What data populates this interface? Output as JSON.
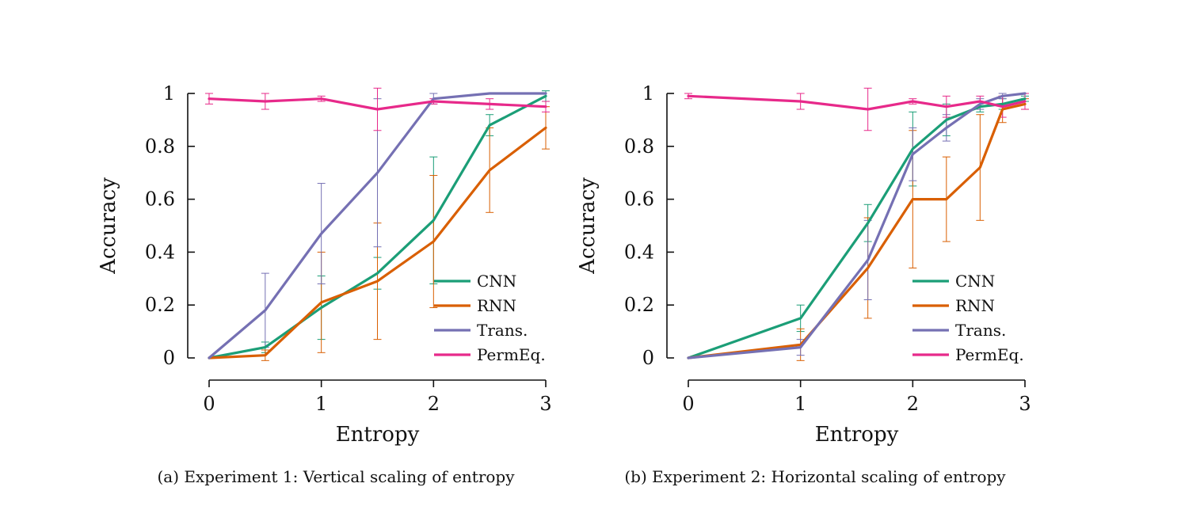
{
  "colors": {
    "CNN": "#1b9e77",
    "RNN": "#d95f02",
    "Trans.": "#7570b3",
    "PermEq.": "#e7298a"
  },
  "chart_data": [
    {
      "type": "line",
      "caption": "(a) Experiment 1: Vertical scaling of entropy",
      "xlabel": "Entropy",
      "ylabel": "Accuracy",
      "xlim": [
        0,
        3
      ],
      "ylim": [
        0,
        1
      ],
      "xticks": [
        "0",
        "1",
        "2",
        "3"
      ],
      "yticks": [
        "0",
        "0.2",
        "0.4",
        "0.6",
        "0.8",
        "1"
      ],
      "legend_position": "bottom-right",
      "grid": false,
      "series": [
        {
          "name": "CNN",
          "x": [
            0,
            0.5,
            1,
            1.5,
            2,
            2.5,
            3
          ],
          "y": [
            0.0,
            0.04,
            0.19,
            0.32,
            0.52,
            0.88,
            0.99
          ],
          "err": [
            0.0,
            0.02,
            0.12,
            0.06,
            0.24,
            0.04,
            0.02
          ]
        },
        {
          "name": "RNN",
          "x": [
            0,
            0.5,
            1,
            1.5,
            2,
            2.5,
            3
          ],
          "y": [
            0.0,
            0.01,
            0.21,
            0.29,
            0.44,
            0.71,
            0.87
          ],
          "err": [
            0.0,
            0.02,
            0.19,
            0.22,
            0.25,
            0.16,
            0.08
          ]
        },
        {
          "name": "Trans.",
          "x": [
            0,
            0.5,
            1,
            1.5,
            2,
            2.5,
            3
          ],
          "y": [
            0.0,
            0.18,
            0.47,
            0.7,
            0.98,
            1.0,
            1.0
          ],
          "err": [
            0.0,
            0.14,
            0.19,
            0.28,
            0.02,
            0.0,
            0.0
          ]
        },
        {
          "name": "PermEq.",
          "x": [
            0,
            0.5,
            1,
            1.5,
            2,
            2.5,
            3
          ],
          "y": [
            0.98,
            0.97,
            0.98,
            0.94,
            0.97,
            0.96,
            0.95
          ],
          "err": [
            0.02,
            0.03,
            0.01,
            0.08,
            0.01,
            0.02,
            0.02
          ]
        }
      ]
    },
    {
      "type": "line",
      "caption": "(b) Experiment 2: Horizontal scaling of entropy",
      "xlabel": "Entropy",
      "ylabel": "Accuracy",
      "xlim": [
        0,
        3
      ],
      "ylim": [
        0,
        1
      ],
      "xticks": [
        "0",
        "1",
        "2",
        "3"
      ],
      "yticks": [
        "0",
        "0.2",
        "0.4",
        "0.6",
        "0.8",
        "1"
      ],
      "legend_position": "bottom-right",
      "grid": false,
      "series": [
        {
          "name": "CNN",
          "x": [
            0,
            1,
            1.6,
            2,
            2.3,
            2.6,
            2.8,
            3
          ],
          "y": [
            0.0,
            0.15,
            0.51,
            0.79,
            0.9,
            0.95,
            0.96,
            0.98
          ],
          "err": [
            0.0,
            0.05,
            0.07,
            0.14,
            0.06,
            0.02,
            0.02,
            0.01
          ]
        },
        {
          "name": "RNN",
          "x": [
            0,
            1,
            1.6,
            2,
            2.3,
            2.6,
            2.8,
            3
          ],
          "y": [
            0.0,
            0.05,
            0.34,
            0.6,
            0.6,
            0.72,
            0.94,
            0.96
          ],
          "err": [
            0.0,
            0.06,
            0.19,
            0.26,
            0.16,
            0.2,
            0.05,
            0.02
          ]
        },
        {
          "name": "Trans.",
          "x": [
            0,
            1,
            1.6,
            2,
            2.3,
            2.6,
            2.8,
            3
          ],
          "y": [
            0.0,
            0.04,
            0.37,
            0.77,
            0.87,
            0.96,
            0.99,
            1.0
          ],
          "err": [
            0.0,
            0.03,
            0.15,
            0.1,
            0.05,
            0.02,
            0.01,
            0.0
          ]
        },
        {
          "name": "PermEq.",
          "x": [
            0,
            1,
            1.6,
            2,
            2.3,
            2.6,
            2.8,
            3
          ],
          "y": [
            0.99,
            0.97,
            0.94,
            0.97,
            0.95,
            0.97,
            0.95,
            0.97
          ],
          "err": [
            0.01,
            0.03,
            0.08,
            0.01,
            0.04,
            0.02,
            0.04,
            0.03
          ]
        }
      ]
    }
  ]
}
